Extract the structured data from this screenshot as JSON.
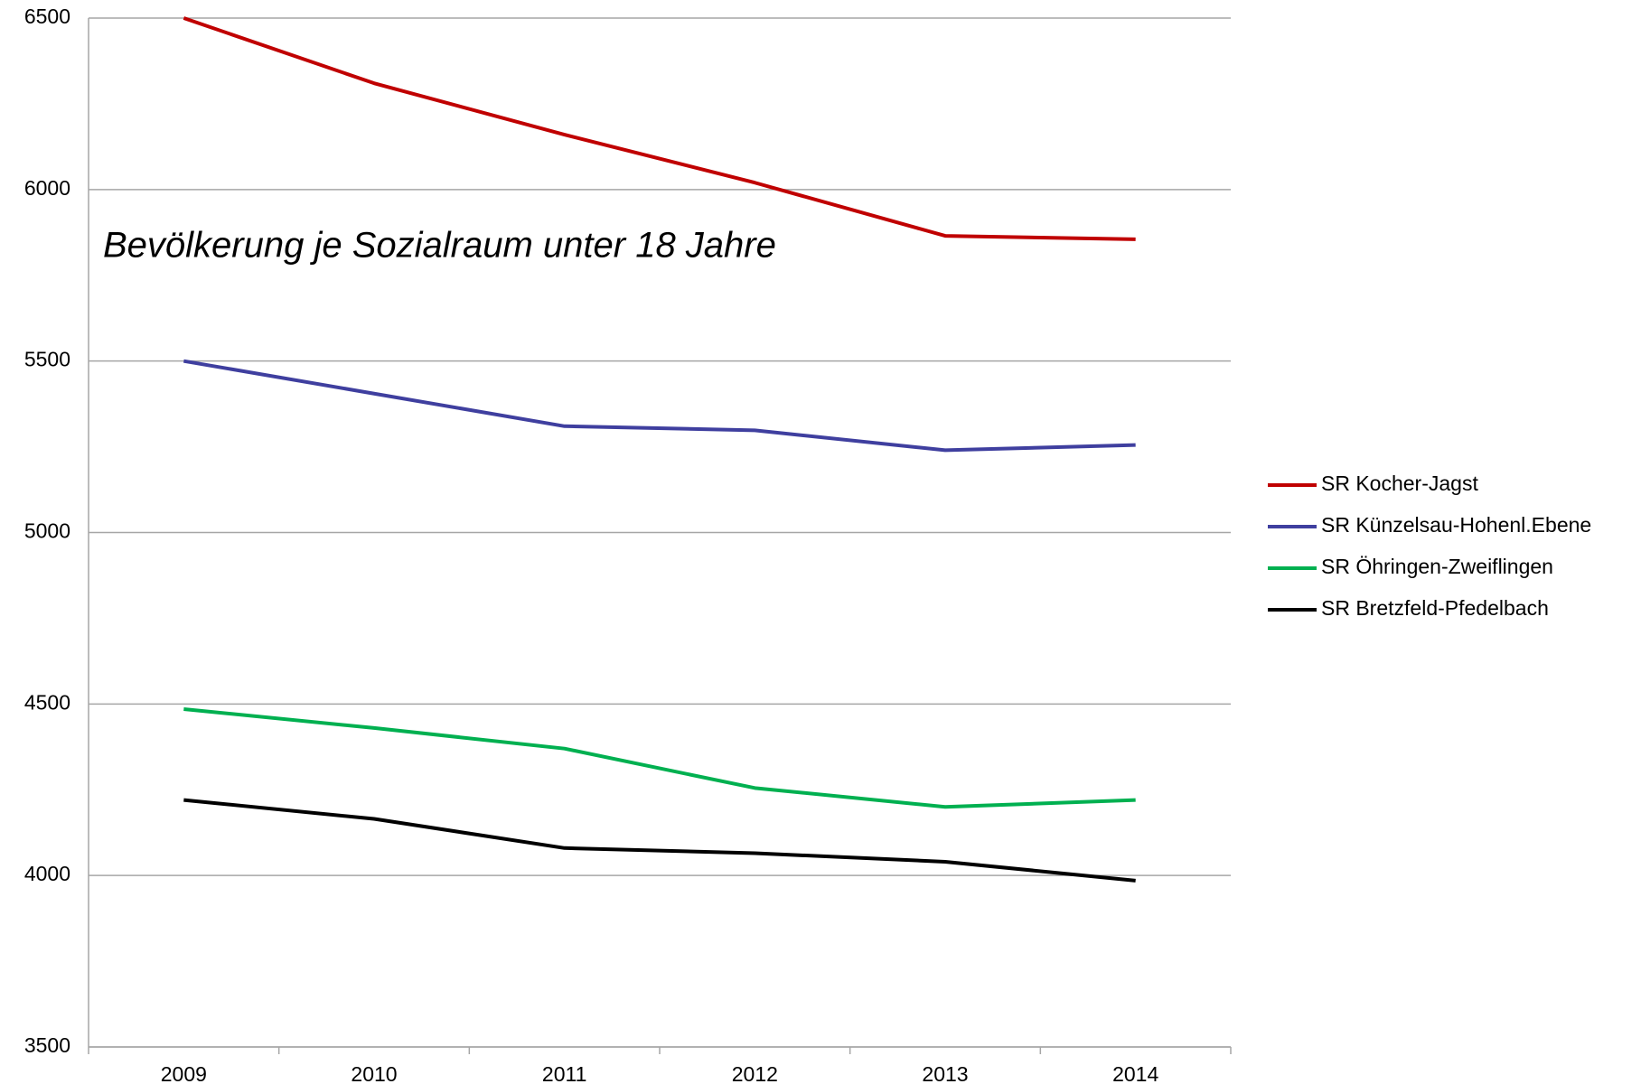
{
  "chart_data": {
    "type": "line",
    "title": "Bevölkerung je Sozialraum unter 18 Jahre",
    "categories": [
      "2009",
      "2010",
      "2011",
      "2012",
      "2013",
      "2014"
    ],
    "series": [
      {
        "name": "SR Kocher-Jagst",
        "color": "#c00000",
        "values": [
          6500,
          6310,
          6160,
          6020,
          5865,
          5855
        ]
      },
      {
        "name": "SR Künzelsau-Hohenl.Ebene",
        "color": "#3f3f9f",
        "values": [
          5500,
          5405,
          5310,
          5298,
          5240,
          5255
        ]
      },
      {
        "name": "SR Öhringen-Zweiflingen",
        "color": "#00b050",
        "values": [
          4485,
          4430,
          4370,
          4255,
          4200,
          4220
        ]
      },
      {
        "name": "SR Bretzfeld-Pfedelbach",
        "color": "#000000",
        "values": [
          4220,
          4165,
          4080,
          4065,
          4040,
          3985
        ]
      }
    ],
    "ylim": [
      3500,
      6500
    ],
    "yticks": [
      3500,
      4000,
      4500,
      5000,
      5500,
      6000,
      6500
    ],
    "grid": true,
    "legend": "right"
  }
}
